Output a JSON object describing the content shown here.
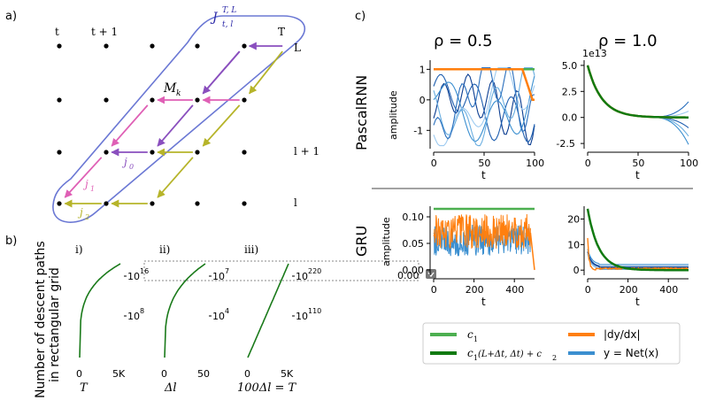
{
  "panel_labels": {
    "a": "a)",
    "b": "b)",
    "c": "c)"
  },
  "panel_a": {
    "grid_cols": 5,
    "grid_rows": 4,
    "top_labels": [
      "t",
      "t + 1",
      "T"
    ],
    "right_labels": [
      "L",
      "l + 1",
      "l"
    ],
    "region_label": "J",
    "region_sup": "T, L",
    "region_sub": "t, l",
    "node_label": "M",
    "node_sub": "k",
    "path_labels": [
      {
        "base": "j",
        "sub": "0"
      },
      {
        "base": "j",
        "sub": "1"
      },
      {
        "base": "j",
        "sub": "2"
      }
    ],
    "colors": {
      "region": "#6b78d4",
      "purple": "#8a4fbe",
      "pink": "#df5fb5",
      "olive": "#b6b42a",
      "label_purple": "#2d2aa8"
    }
  },
  "panel_b": {
    "y_label_line1": "Number of descent paths",
    "y_label_line2": "in rectangular grid",
    "sub_labels": [
      "i)",
      "ii)",
      "iii)"
    ],
    "charts": [
      {
        "xticks": [
          "0",
          "5K"
        ],
        "ytick_top": "10",
        "ytick_top_exp": "16",
        "ytick_mid": "10",
        "ytick_mid_exp": "8",
        "xlabel": "T"
      },
      {
        "xticks": [
          "0",
          "50"
        ],
        "ytick_top": "10",
        "ytick_top_exp": "7",
        "ytick_mid": "10",
        "ytick_mid_exp": "4",
        "xlabel": "Δl"
      },
      {
        "xticks": [
          "0",
          "5K"
        ],
        "ytick_top": "10",
        "ytick_top_exp": "220",
        "ytick_mid": "10",
        "ytick_mid_exp": "110",
        "xlabel": "100Δl = T"
      }
    ],
    "tooltip_value": "0.00",
    "curve_color": "#1a7a1a"
  },
  "chart_data": [
    {
      "type": "line",
      "title": "ρ = 0.5",
      "row_label": "PascalRNN",
      "ylabel": "amplitude",
      "xlabel": "t",
      "xticks": [
        "0",
        "50",
        "100"
      ],
      "yticks": [
        "1",
        "0",
        "-1"
      ],
      "ylim": [
        -1.6,
        1.3
      ],
      "xlim": [
        0,
        100
      ],
      "series": [
        {
          "name": "c1",
          "values": [
            1,
            1
          ]
        },
        {
          "name": "c1(L+Δt choose Δt) + c2",
          "values": [
            1,
            1,
            1,
            0.1,
            0
          ]
        }
      ]
    },
    {
      "type": "line",
      "title": "ρ = 1.0",
      "row_label": "PascalRNN",
      "xlabel": "t",
      "offset_text": "1e13",
      "xticks": [
        "0",
        "50",
        "100"
      ],
      "yticks": [
        "5.0",
        "2.5",
        "0.0",
        "-2.5"
      ],
      "ylim": [
        -3,
        5.5
      ],
      "xlim": [
        0,
        100
      ],
      "series": [
        {
          "name": "c1(L+Δt choose Δt) + c2",
          "values": [
            5,
            2.2,
            0.9,
            0.3,
            0.1,
            0
          ]
        }
      ]
    },
    {
      "type": "line",
      "row_label": "GRU",
      "ylabel": "amplitude",
      "xlabel": "t",
      "xticks": [
        "0",
        "200",
        "400"
      ],
      "yticks": [
        "0.10",
        "0.05",
        "0.00"
      ],
      "ylim": [
        -0.01,
        0.12
      ],
      "xlim": [
        0,
        500
      ],
      "series": [
        {
          "name": "c1",
          "values": [
            0.115,
            0.115
          ]
        },
        {
          "name": "|dy/dx|",
          "values": [
            0.06,
            0.06
          ]
        },
        {
          "name": "y = Net(x)",
          "values": [
            0.05,
            0.05
          ]
        }
      ]
    },
    {
      "type": "line",
      "row_label": "GRU",
      "xlabel": "t",
      "xticks": [
        "0",
        "200",
        "400"
      ],
      "yticks": [
        "20",
        "10",
        "0"
      ],
      "ylim": [
        -2,
        25
      ],
      "xlim": [
        0,
        500
      ],
      "series": [
        {
          "name": "c1(L+Δt choose Δt) + c2",
          "values": [
            24,
            12,
            5,
            2,
            0.5,
            0
          ]
        },
        {
          "name": "|dy/dx|",
          "values": [
            15,
            0.5,
            0.5
          ]
        }
      ]
    }
  ],
  "panel_c": {
    "col_titles": [
      "ρ = 0.5",
      "ρ = 1.0"
    ],
    "row_labels": [
      "PascalRNN",
      "GRU"
    ],
    "legend": [
      {
        "label": "c",
        "sub": "1",
        "color": "#4caf50"
      },
      {
        "label": "c",
        "sub": "1",
        "extra": "(L+Δt, Δt) + c",
        "sub2": "2",
        "color": "#117a11"
      },
      {
        "label": "|dy/dx|",
        "color": "#ff7f0e"
      },
      {
        "label": "y = Net(x)",
        "color": "#3b8fd0"
      }
    ]
  }
}
